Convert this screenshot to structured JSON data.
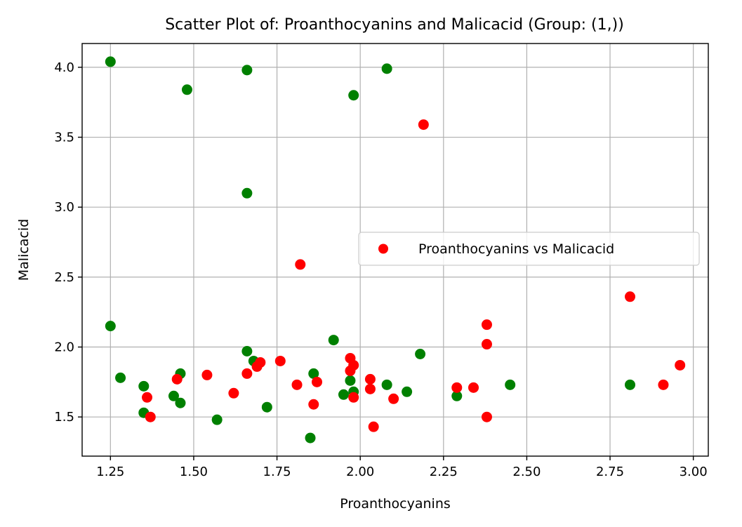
{
  "chart_data": {
    "type": "scatter",
    "title": "Scatter Plot of: Proanthocyanins and Malicacid (Group: (1,))",
    "xlabel": "Proanthocyanins",
    "ylabel": "Malicacid",
    "xlim": [
      1.165,
      3.045
    ],
    "ylim": [
      1.22,
      4.17
    ],
    "xticks": [
      1.25,
      1.5,
      1.75,
      2.0,
      2.25,
      2.5,
      2.75,
      3.0
    ],
    "xtick_labels": [
      "1.25",
      "1.50",
      "1.75",
      "2.00",
      "2.25",
      "2.50",
      "2.75",
      "3.00"
    ],
    "yticks": [
      1.5,
      2.0,
      2.5,
      3.0,
      3.5,
      4.0
    ],
    "ytick_labels": [
      "1.5",
      "2.0",
      "2.5",
      "3.0",
      "3.5",
      "4.0"
    ],
    "grid": true,
    "legend_position": "center-right",
    "series": [
      {
        "name": "",
        "color": "#008000",
        "points": [
          [
            1.25,
            4.04
          ],
          [
            1.66,
            3.98
          ],
          [
            1.48,
            3.84
          ],
          [
            2.08,
            3.99
          ],
          [
            1.98,
            3.8
          ],
          [
            1.66,
            3.1
          ],
          [
            1.25,
            2.15
          ],
          [
            1.28,
            1.78
          ],
          [
            1.35,
            1.72
          ],
          [
            1.35,
            1.53
          ],
          [
            1.44,
            1.65
          ],
          [
            1.46,
            1.81
          ],
          [
            1.46,
            1.6
          ],
          [
            1.57,
            1.48
          ],
          [
            1.66,
            1.97
          ],
          [
            1.68,
            1.9
          ],
          [
            1.72,
            1.57
          ],
          [
            1.85,
            1.35
          ],
          [
            1.86,
            1.81
          ],
          [
            1.92,
            2.05
          ],
          [
            1.95,
            1.66
          ],
          [
            1.97,
            1.76
          ],
          [
            1.98,
            1.68
          ],
          [
            2.08,
            1.73
          ],
          [
            2.14,
            1.68
          ],
          [
            2.18,
            1.95
          ],
          [
            2.29,
            1.65
          ],
          [
            2.45,
            1.73
          ],
          [
            2.81,
            1.73
          ]
        ]
      },
      {
        "name": "Proanthocyanins vs Malicacid",
        "color": "#ff0000",
        "points": [
          [
            2.19,
            3.59
          ],
          [
            1.82,
            2.59
          ],
          [
            2.81,
            2.36
          ],
          [
            2.38,
            2.16
          ],
          [
            2.38,
            2.02
          ],
          [
            1.97,
            1.92
          ],
          [
            1.98,
            1.87
          ],
          [
            1.97,
            1.83
          ],
          [
            1.76,
            1.9
          ],
          [
            1.7,
            1.89
          ],
          [
            1.69,
            1.86
          ],
          [
            1.66,
            1.81
          ],
          [
            1.54,
            1.8
          ],
          [
            1.45,
            1.77
          ],
          [
            1.36,
            1.64
          ],
          [
            1.37,
            1.5
          ],
          [
            1.62,
            1.67
          ],
          [
            1.81,
            1.73
          ],
          [
            1.87,
            1.75
          ],
          [
            1.86,
            1.59
          ],
          [
            1.98,
            1.64
          ],
          [
            2.03,
            1.77
          ],
          [
            2.03,
            1.7
          ],
          [
            2.04,
            1.43
          ],
          [
            2.1,
            1.63
          ],
          [
            2.29,
            1.71
          ],
          [
            2.34,
            1.71
          ],
          [
            2.38,
            1.5
          ],
          [
            2.91,
            1.73
          ],
          [
            2.96,
            1.87
          ]
        ]
      }
    ],
    "legend": [
      {
        "label": "Proanthocyanins vs Malicacid",
        "color": "#ff0000"
      }
    ]
  }
}
